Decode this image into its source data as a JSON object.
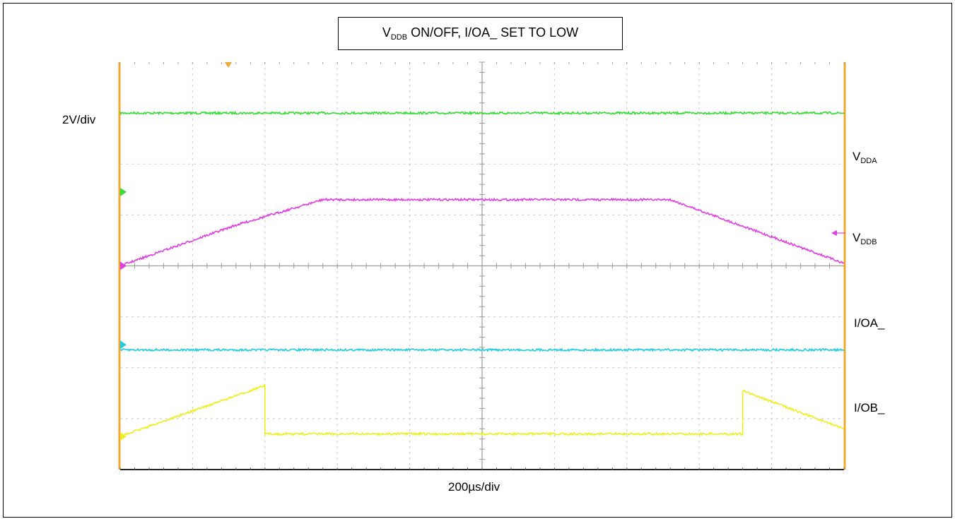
{
  "chart_data": {
    "type": "line",
    "title": "V_DDB ON/OFF, I/OA_ SET TO LOW",
    "title_parts": {
      "main": "V",
      "sub": "DDB",
      "rest": " ON/OFF, I/OA_ SET TO LOW"
    },
    "vertical_scale": "2V/div",
    "horizontal_scale": "200µs/div",
    "x_unit": "div",
    "y_unit": "div",
    "xlim": [
      0,
      10
    ],
    "ylim": [
      -4,
      4
    ],
    "grid": true,
    "series": [
      {
        "name": "VDDA",
        "label_main": "V",
        "label_sub": "DDA",
        "color": "#33dd33",
        "x": [
          0,
          10
        ],
        "y": [
          3.0,
          3.0
        ]
      },
      {
        "name": "VDDB",
        "label_main": "V",
        "label_sub": "DDB",
        "color": "#e040e0",
        "x": [
          0,
          1.6,
          2.8,
          7.6,
          10
        ],
        "y": [
          0.0,
          0.8,
          1.3,
          1.3,
          0.05
        ]
      },
      {
        "name": "I/OA_",
        "label_main": "I/OA_",
        "label_sub": "",
        "color": "#22ccdd",
        "x": [
          0,
          10
        ],
        "y": [
          -1.65,
          -1.65
        ]
      },
      {
        "name": "I/OB_",
        "label_main": "I/OB_",
        "label_sub": "",
        "color": "#eeee22",
        "x": [
          0,
          2.0,
          2.0,
          8.6,
          8.6,
          10
        ],
        "y": [
          -3.35,
          -2.35,
          -3.3,
          -3.3,
          -2.45,
          -3.2
        ]
      }
    ]
  }
}
